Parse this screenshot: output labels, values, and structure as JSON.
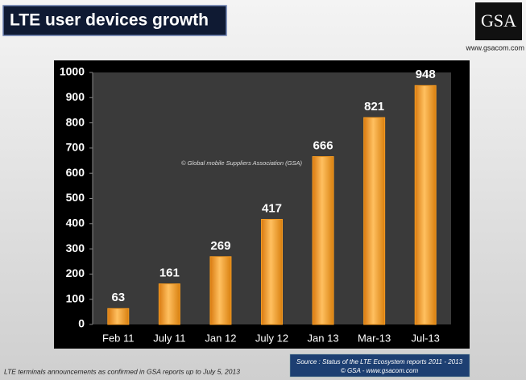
{
  "chart_data": {
    "type": "bar",
    "title": "LTE user devices growth",
    "categories": [
      "Feb 11",
      "July 11",
      "Jan 12",
      "July 12",
      "Jan 13",
      "Mar-13",
      "Jul-13"
    ],
    "values": [
      63,
      161,
      269,
      417,
      666,
      821,
      948
    ],
    "color": "#f39a22",
    "ylim": [
      0,
      1000
    ],
    "yticks": [
      0,
      100,
      200,
      300,
      400,
      500,
      600,
      700,
      800,
      900,
      1000
    ],
    "grid": false,
    "annotation": "© Global mobile Suppliers Association (GSA)",
    "footnote": "LTE terminals announcements as confirmed in GSA reports up to July 5, 2013",
    "source": [
      "Source : Status of the LTE Ecosystem reports 2011 - 2013",
      "© GSA - www.gsacom.com"
    ],
    "logo": "GSA",
    "website": "www.gsacom.com"
  }
}
